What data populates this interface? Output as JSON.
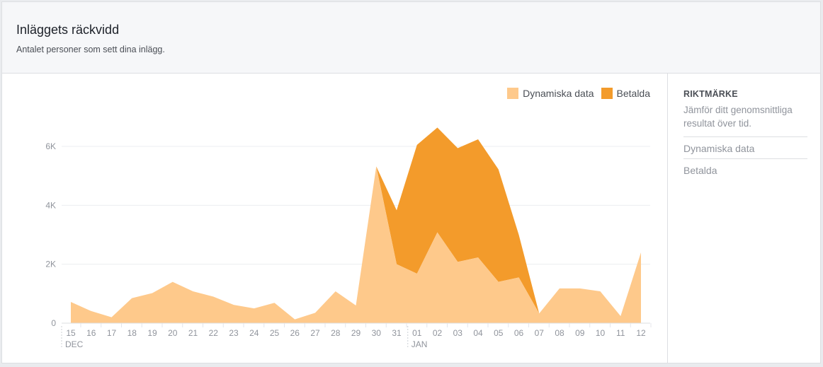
{
  "header": {
    "title": "Inläggets räckvidd",
    "subtitle": "Antalet personer som sett dina inlägg."
  },
  "sidebar": {
    "title": "RIKTMÄRKE",
    "description": "Jämför ditt genomsnittliga resultat över tid.",
    "items": [
      "Dynamiska data",
      "Betalda"
    ]
  },
  "colors": {
    "organic": "#fec98b",
    "paid": "#f39b2b",
    "grid": "#ebedf0",
    "axis_text": "#90949c"
  },
  "chart_data": {
    "type": "area",
    "stacked": true,
    "x": [
      "15",
      "16",
      "17",
      "18",
      "19",
      "20",
      "21",
      "22",
      "23",
      "24",
      "25",
      "26",
      "27",
      "28",
      "29",
      "30",
      "31",
      "01",
      "02",
      "03",
      "04",
      "05",
      "06",
      "07",
      "08",
      "09",
      "10",
      "11",
      "12"
    ],
    "month_labels": [
      {
        "at": "15",
        "label": "DEC"
      },
      {
        "at": "01",
        "label": "JAN"
      }
    ],
    "yticks": [
      0,
      2000,
      4000,
      6000
    ],
    "ytick_labels": [
      "0",
      "2K",
      "4K",
      "6K"
    ],
    "ylim": [
      0,
      6000
    ],
    "legend": {
      "position": "top-right",
      "entries": [
        "Dynamiska data",
        "Betalda"
      ]
    },
    "series": [
      {
        "name": "Dynamiska data",
        "values": [
          720,
          410,
          200,
          850,
          1020,
          1400,
          1080,
          900,
          620,
          500,
          690,
          130,
          350,
          1080,
          600,
          5320,
          2000,
          1680,
          3080,
          2080,
          2230,
          1400,
          1550,
          330,
          1180,
          1180,
          1080,
          240,
          2400
        ]
      },
      {
        "name": "Betalda",
        "values": [
          0,
          0,
          0,
          0,
          0,
          0,
          0,
          0,
          0,
          0,
          0,
          0,
          0,
          0,
          0,
          0,
          1830,
          4370,
          3560,
          3860,
          4010,
          3820,
          1450,
          0,
          0,
          0,
          0,
          0,
          0
        ]
      }
    ]
  }
}
